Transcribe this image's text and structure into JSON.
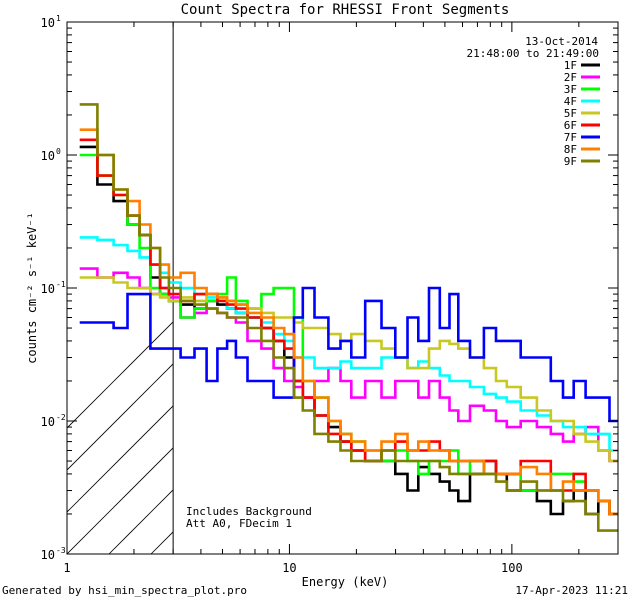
{
  "chart_data": {
    "type": "line",
    "title": "Count Spectra for RHESSI Front Segments",
    "xlabel": "Energy (keV)",
    "ylabel": "counts cm⁻² s⁻¹ keV⁻¹",
    "xscale": "log",
    "yscale": "log",
    "xlim": [
      1,
      300
    ],
    "ylim": [
      0.001,
      10
    ],
    "xticks": [
      {
        "value": 1,
        "label": "1"
      },
      {
        "value": 10,
        "label": "10"
      },
      {
        "value": 100,
        "label": "100"
      }
    ],
    "yticks": [
      {
        "value": 0.001,
        "base": "10",
        "exp": "-3"
      },
      {
        "value": 0.01,
        "base": "10",
        "exp": "-2"
      },
      {
        "value": 0.1,
        "base": "10",
        "exp": "-1"
      },
      {
        "value": 1,
        "base": "10",
        "exp": "0"
      },
      {
        "value": 10,
        "base": "10",
        "exp": "1"
      }
    ],
    "date": "13-Oct-2014",
    "time_range": "21:48:00 to 21:49:00",
    "shaded_region": {
      "from": 1,
      "to": 3,
      "style": "diagonal hatch"
    },
    "annotations": [
      "Includes Background",
      "Att A0, FDecim 1"
    ],
    "footer_left": "Generated by hsi_min_spectra_plot.pro",
    "footer_right": "17-Apr-2023 11:21",
    "energies": [
      1.25,
      1.5,
      1.75,
      2.0,
      2.25,
      2.5,
      2.75,
      3.0,
      3.5,
      4.0,
      4.5,
      5.0,
      5.5,
      6.0,
      7.0,
      8.0,
      9.0,
      10.0,
      11.0,
      12.0,
      14.0,
      16.0,
      18.0,
      20.0,
      24.0,
      28.0,
      32.0,
      36.0,
      40.0,
      45.0,
      50.0,
      55.0,
      60.0,
      70.0,
      80.0,
      90.0,
      100.0,
      120.0,
      140.0,
      160.0,
      180.0,
      200.0,
      230.0,
      260.0,
      290.0
    ],
    "series": [
      {
        "name": "1F",
        "color": "#000000",
        "values": [
          1.15,
          0.6,
          0.45,
          0.3,
          0.25,
          0.12,
          0.09,
          0.08,
          0.075,
          0.07,
          0.08,
          0.075,
          0.07,
          0.065,
          0.06,
          0.05,
          0.04,
          0.03,
          0.02,
          0.015,
          0.011,
          0.009,
          0.007,
          0.006,
          0.005,
          0.005,
          0.004,
          0.003,
          0.0045,
          0.004,
          0.0035,
          0.003,
          0.0025,
          0.004,
          0.005,
          0.004,
          0.003,
          0.003,
          0.0025,
          0.002,
          0.0025,
          0.003,
          0.002,
          0.0025,
          0.002
        ]
      },
      {
        "name": "2F",
        "color": "#ff00ff",
        "values": [
          0.14,
          0.12,
          0.13,
          0.12,
          0.1,
          0.09,
          0.1,
          0.085,
          0.06,
          0.065,
          0.07,
          0.065,
          0.06,
          0.055,
          0.04,
          0.035,
          0.025,
          0.02,
          0.018,
          0.015,
          0.02,
          0.025,
          0.02,
          0.015,
          0.02,
          0.015,
          0.02,
          0.02,
          0.015,
          0.02,
          0.015,
          0.012,
          0.01,
          0.013,
          0.012,
          0.01,
          0.009,
          0.01,
          0.009,
          0.008,
          0.007,
          0.008,
          0.009,
          0.006,
          0.005
        ]
      },
      {
        "name": "3F",
        "color": "#00ff00",
        "values": [
          1.0,
          0.7,
          0.5,
          0.3,
          0.2,
          0.1,
          0.09,
          0.08,
          0.06,
          0.07,
          0.08,
          0.09,
          0.12,
          0.08,
          0.07,
          0.09,
          0.1,
          0.1,
          0.06,
          0.02,
          0.015,
          0.01,
          0.008,
          0.007,
          0.006,
          0.005,
          0.006,
          0.005,
          0.004,
          0.005,
          0.005,
          0.006,
          0.004,
          0.005,
          0.004,
          0.004,
          0.004,
          0.003,
          0.003,
          0.004,
          0.004,
          0.0035,
          0.003,
          0.0025,
          0.002
        ]
      },
      {
        "name": "4F",
        "color": "#00ffff",
        "values": [
          0.24,
          0.23,
          0.21,
          0.19,
          0.17,
          0.15,
          0.13,
          0.11,
          0.1,
          0.09,
          0.085,
          0.08,
          0.07,
          0.065,
          0.06,
          0.055,
          0.045,
          0.04,
          0.03,
          0.03,
          0.025,
          0.025,
          0.028,
          0.025,
          0.025,
          0.03,
          0.03,
          0.025,
          0.028,
          0.025,
          0.022,
          0.02,
          0.02,
          0.018,
          0.016,
          0.015,
          0.014,
          0.012,
          0.011,
          0.01,
          0.009,
          0.009,
          0.008,
          0.008,
          0.006
        ]
      },
      {
        "name": "5F",
        "color": "#c8c820",
        "values": [
          0.12,
          0.12,
          0.11,
          0.1,
          0.1,
          0.09,
          0.085,
          0.08,
          0.085,
          0.08,
          0.09,
          0.085,
          0.08,
          0.075,
          0.07,
          0.065,
          0.06,
          0.06,
          0.055,
          0.05,
          0.05,
          0.045,
          0.04,
          0.045,
          0.04,
          0.035,
          0.03,
          0.025,
          0.025,
          0.035,
          0.04,
          0.038,
          0.035,
          0.03,
          0.025,
          0.02,
          0.018,
          0.015,
          0.012,
          0.01,
          0.01,
          0.008,
          0.007,
          0.006,
          0.005
        ]
      },
      {
        "name": "6F",
        "color": "#ff0000",
        "values": [
          1.3,
          0.7,
          0.5,
          0.35,
          0.25,
          0.15,
          0.1,
          0.09,
          0.08,
          0.09,
          0.09,
          0.08,
          0.075,
          0.07,
          0.06,
          0.05,
          0.04,
          0.035,
          0.02,
          0.015,
          0.011,
          0.008,
          0.007,
          0.006,
          0.005,
          0.006,
          0.007,
          0.006,
          0.006,
          0.007,
          0.006,
          0.005,
          0.005,
          0.005,
          0.005,
          0.004,
          0.004,
          0.005,
          0.005,
          0.003,
          0.003,
          0.004,
          0.003,
          0.0025,
          0.002
        ]
      },
      {
        "name": "7F",
        "color": "#0000ff",
        "values": [
          0.055,
          0.055,
          0.05,
          0.09,
          0.09,
          0.035,
          0.035,
          0.035,
          0.03,
          0.035,
          0.02,
          0.035,
          0.04,
          0.03,
          0.02,
          0.02,
          0.015,
          0.015,
          0.06,
          0.1,
          0.06,
          0.035,
          0.04,
          0.03,
          0.08,
          0.05,
          0.03,
          0.06,
          0.04,
          0.1,
          0.05,
          0.09,
          0.04,
          0.03,
          0.05,
          0.04,
          0.04,
          0.03,
          0.03,
          0.02,
          0.015,
          0.02,
          0.015,
          0.015,
          0.01
        ]
      },
      {
        "name": "8F",
        "color": "#ff8000",
        "values": [
          1.55,
          1.0,
          0.55,
          0.45,
          0.3,
          0.2,
          0.15,
          0.12,
          0.13,
          0.1,
          0.09,
          0.085,
          0.08,
          0.075,
          0.065,
          0.06,
          0.05,
          0.045,
          0.03,
          0.02,
          0.015,
          0.01,
          0.008,
          0.007,
          0.006,
          0.007,
          0.008,
          0.006,
          0.007,
          0.006,
          0.006,
          0.005,
          0.005,
          0.005,
          0.004,
          0.004,
          0.004,
          0.0045,
          0.004,
          0.003,
          0.0035,
          0.003,
          0.003,
          0.0025,
          0.002
        ]
      },
      {
        "name": "9F",
        "color": "#808000",
        "values": [
          2.4,
          1.0,
          0.55,
          0.35,
          0.25,
          0.2,
          0.12,
          0.1,
          0.08,
          0.075,
          0.07,
          0.065,
          0.06,
          0.06,
          0.05,
          0.04,
          0.03,
          0.025,
          0.015,
          0.012,
          0.008,
          0.007,
          0.006,
          0.005,
          0.005,
          0.006,
          0.005,
          0.005,
          0.005,
          0.005,
          0.0045,
          0.004,
          0.004,
          0.004,
          0.004,
          0.0035,
          0.003,
          0.0035,
          0.003,
          0.003,
          0.0025,
          0.0025,
          0.002,
          0.0015,
          0.0015
        ]
      }
    ]
  }
}
